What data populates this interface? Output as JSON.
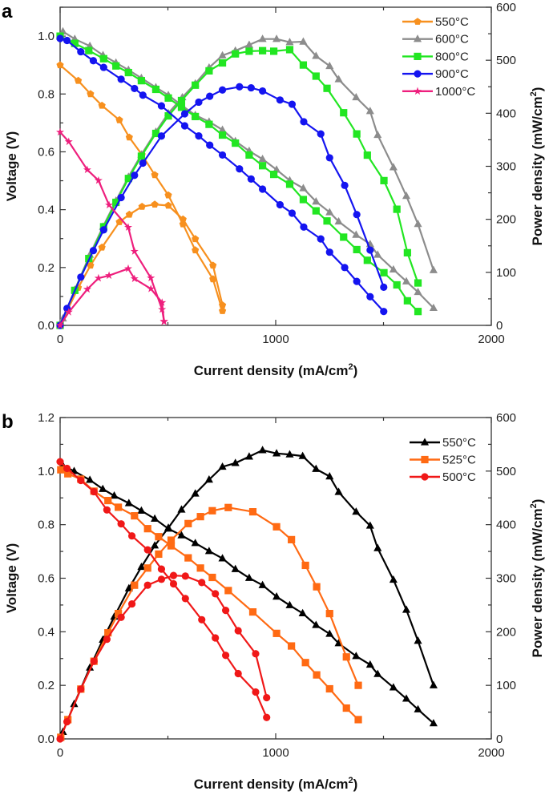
{
  "chart_data": [
    {
      "panel_label": "a",
      "type": "line",
      "xlabel": "Current density (mA/cm",
      "xlabel_sup": "2",
      "xlabel_end": ")",
      "ylabel": "Voltage (V)",
      "y2label": "Power density (mW/cm",
      "y2label_sup": "2",
      "y2label_end": ")",
      "xlim": [
        0,
        2000
      ],
      "ylim": [
        0,
        1.1
      ],
      "y2lim": [
        0,
        600
      ],
      "xticks": [
        "0",
        "1000",
        "2000"
      ],
      "yticks": [
        "0.0",
        "0.2",
        "0.4",
        "0.6",
        "0.8",
        "1.0"
      ],
      "y2ticks": [
        "0",
        "100",
        "200",
        "300",
        "400",
        "500",
        "600"
      ],
      "legend_position": "top-right",
      "grid": false,
      "series": [
        {
          "name": "550°C",
          "color": "#f7901e",
          "marker": "pentagon",
          "current": [
            0,
            84,
            141,
            194,
            275,
            321,
            380,
            439,
            502,
            570,
            627,
            709,
            753
          ],
          "voltage": [
            0.9,
            0.846,
            0.8,
            0.76,
            0.71,
            0.65,
            0.59,
            0.52,
            0.45,
            0.35,
            0.26,
            0.16,
            0.05
          ],
          "power": [
            0,
            71,
            113,
            147,
            195,
            209,
            224,
            228,
            226,
            200,
            163,
            113,
            38
          ]
        },
        {
          "name": "600°C",
          "color": "#8c8c8c",
          "marker": "triangle",
          "current": [
            13,
            68,
            138,
            199,
            259,
            317,
            377,
            444,
            502,
            567,
            627,
            691,
            753,
            813,
            877,
            939,
            1004,
            1065,
            1128,
            1187,
            1250,
            1292,
            1373,
            1438,
            1473,
            1546,
            1606,
            1660,
            1732
          ],
          "voltage": [
            1.016,
            0.99,
            0.966,
            0.934,
            0.908,
            0.883,
            0.855,
            0.823,
            0.796,
            0.759,
            0.727,
            0.704,
            0.676,
            0.637,
            0.603,
            0.575,
            0.538,
            0.501,
            0.474,
            0.428,
            0.391,
            0.359,
            0.313,
            0.281,
            0.244,
            0.193,
            0.152,
            0.115,
            0.06
          ],
          "power": [
            13,
            67,
            133,
            186,
            235,
            280,
            322,
            365,
            400,
            430,
            456,
            486,
            509,
            518,
            529,
            540,
            540,
            534,
            535,
            508,
            489,
            464,
            430,
            404,
            359,
            298,
            244,
            191,
            104
          ]
        },
        {
          "name": "800°C",
          "color": "#22e622",
          "marker": "square",
          "current": [
            0,
            68,
            133,
            202,
            259,
            317,
            377,
            444,
            502,
            563,
            627,
            691,
            753,
            813,
            877,
            939,
            991,
            1065,
            1128,
            1187,
            1238,
            1315,
            1376,
            1425,
            1502,
            1562,
            1611,
            1660
          ],
          "voltage": [
            1.0,
            0.975,
            0.95,
            0.922,
            0.897,
            0.874,
            0.846,
            0.816,
            0.786,
            0.754,
            0.722,
            0.695,
            0.658,
            0.63,
            0.589,
            0.552,
            0.522,
            0.488,
            0.435,
            0.396,
            0.361,
            0.305,
            0.262,
            0.225,
            0.182,
            0.14,
            0.085,
            0.048
          ],
          "power": [
            0,
            66,
            126,
            186,
            232,
            277,
            319,
            362,
            395,
            424,
            453,
            480,
            495,
            512,
            517,
            518,
            517,
            520,
            491,
            470,
            447,
            401,
            361,
            321,
            273,
            219,
            137,
            80
          ]
        },
        {
          "name": "900°C",
          "color": "#1414f0",
          "marker": "circle",
          "current": [
            0,
            32,
            96,
            154,
            202,
            283,
            345,
            384,
            470,
            578,
            643,
            694,
            753,
            832,
            886,
            939,
            1020,
            1076,
            1130,
            1209,
            1250,
            1320,
            1376,
            1438,
            1501
          ],
          "voltage": [
            0.992,
            0.985,
            0.946,
            0.915,
            0.892,
            0.851,
            0.819,
            0.796,
            0.759,
            0.69,
            0.655,
            0.623,
            0.589,
            0.541,
            0.506,
            0.471,
            0.417,
            0.388,
            0.34,
            0.299,
            0.253,
            0.2,
            0.152,
            0.099,
            0.048
          ],
          "power": [
            0,
            32,
            91,
            141,
            180,
            241,
            283,
            306,
            357,
            399,
            421,
            432,
            444,
            450,
            448,
            442,
            425,
            417,
            384,
            361,
            316,
            264,
            209,
            142,
            72
          ]
        },
        {
          "name": "1000°C",
          "color": "#ee1f7d",
          "marker": "star",
          "current": [
            0,
            40,
            126,
            178,
            227,
            316,
            345,
            421,
            473,
            482
          ],
          "voltage": [
            0.668,
            0.635,
            0.538,
            0.501,
            0.416,
            0.339,
            0.256,
            0.164,
            0.055,
            0.014
          ],
          "power": [
            0,
            25,
            68,
            89,
            94,
            107,
            88,
            69,
            43,
            7
          ]
        }
      ]
    },
    {
      "panel_label": "b",
      "type": "line",
      "xlabel": "Current density (mA/cm",
      "xlabel_sup": "2",
      "xlabel_end": ")",
      "ylabel": "Voltage (V)",
      "y2label": "Power density (mW/cm",
      "y2label_sup": "2",
      "y2label_end": ")",
      "xlim": [
        0,
        2000
      ],
      "ylim": [
        0,
        1.2
      ],
      "y2lim": [
        0,
        600
      ],
      "xticks": [
        "0",
        "1000",
        "2000"
      ],
      "yticks": [
        "0.0",
        "0.2",
        "0.4",
        "0.6",
        "0.8",
        "1.0",
        "1.2"
      ],
      "y2ticks": [
        "0",
        "100",
        "200",
        "300",
        "400",
        "500",
        "600"
      ],
      "legend_position": "top-right",
      "grid": false,
      "series": [
        {
          "name": "550°C",
          "color": "#000000",
          "marker": "triangle",
          "current": [
            13,
            65,
            138,
            198,
            251,
            319,
            377,
            439,
            502,
            563,
            627,
            691,
            753,
            813,
            877,
            939,
            1004,
            1065,
            1125,
            1187,
            1250,
            1292,
            1373,
            1438,
            1473,
            1546,
            1606,
            1660,
            1732
          ],
          "voltage": [
            1.02,
            1.0,
            0.967,
            0.933,
            0.908,
            0.88,
            0.852,
            0.822,
            0.785,
            0.76,
            0.731,
            0.701,
            0.674,
            0.634,
            0.601,
            0.574,
            0.531,
            0.499,
            0.469,
            0.425,
            0.392,
            0.357,
            0.309,
            0.277,
            0.242,
            0.192,
            0.15,
            0.11,
            0.058
          ],
          "power": [
            13,
            65,
            133,
            185,
            228,
            281,
            321,
            361,
            394,
            428,
            458,
            484,
            508,
            515,
            527,
            539,
            533,
            531,
            528,
            504,
            490,
            461,
            424,
            398,
            356,
            297,
            241,
            183,
            100
          ]
        },
        {
          "name": "525°C",
          "color": "#ff6a13",
          "marker": "square",
          "current": [
            3,
            36,
            96,
            157,
            222,
            270,
            345,
            406,
            457,
            515,
            594,
            651,
            706,
            780,
            894,
            1004,
            1073,
            1138,
            1190,
            1250,
            1328,
            1383
          ],
          "voltage": [
            1.005,
            0.99,
            0.97,
            0.925,
            0.89,
            0.865,
            0.833,
            0.785,
            0.755,
            0.721,
            0.676,
            0.638,
            0.603,
            0.554,
            0.474,
            0.394,
            0.347,
            0.285,
            0.239,
            0.187,
            0.115,
            0.072
          ],
          "power": [
            3,
            36,
            93,
            145,
            198,
            234,
            287,
            319,
            345,
            371,
            402,
            415,
            426,
            432,
            424,
            396,
            372,
            324,
            284,
            234,
            153,
            100
          ]
        },
        {
          "name": "500°C",
          "color": "#f01818",
          "marker": "circle",
          "current": [
            0,
            32,
            96,
            157,
            217,
            283,
            333,
            406,
            470,
            526,
            581,
            657,
            720,
            768,
            826,
            907,
            958
          ],
          "voltage": [
            1.035,
            1.01,
            0.965,
            0.923,
            0.855,
            0.803,
            0.758,
            0.706,
            0.634,
            0.579,
            0.524,
            0.445,
            0.377,
            0.312,
            0.244,
            0.175,
            0.08
          ],
          "power": [
            0,
            32,
            93,
            145,
            186,
            227,
            252,
            287,
            298,
            305,
            304,
            292,
            271,
            240,
            202,
            159,
            77
          ]
        }
      ]
    }
  ]
}
